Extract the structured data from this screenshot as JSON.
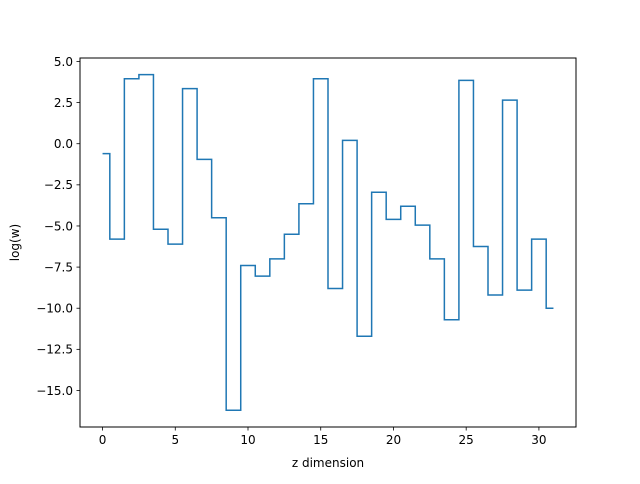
{
  "chart_data": {
    "type": "line",
    "drawstyle": "steps-mid",
    "title": "",
    "xlabel": "z dimension",
    "ylabel": "log(w)",
    "xlim": [
      -1.55,
      32.55
    ],
    "ylim": [
      -17.22,
      5.21
    ],
    "grid": false,
    "x_ticks": [
      0,
      5,
      10,
      15,
      20,
      25,
      30
    ],
    "x_tick_labels": [
      "0",
      "5",
      "10",
      "15",
      "20",
      "25",
      "30"
    ],
    "y_ticks": [
      5.0,
      2.5,
      0.0,
      -2.5,
      -5.0,
      -7.5,
      -10.0,
      -12.5,
      -15.0
    ],
    "y_tick_labels": [
      "5.0",
      "2.5",
      "0.0",
      "−2.5",
      "−5.0",
      "−7.5",
      "−10.0",
      "−12.5",
      "−15.0"
    ],
    "series": [
      {
        "color": "#1f77b4",
        "x": [
          0,
          1,
          2,
          3,
          4,
          5,
          6,
          7,
          8,
          9,
          10,
          11,
          12,
          13,
          14,
          15,
          16,
          17,
          18,
          19,
          20,
          21,
          22,
          23,
          24,
          25,
          26,
          27,
          28,
          29,
          30,
          31
        ],
        "values": [
          -0.6,
          -5.8,
          3.95,
          4.2,
          -5.2,
          -6.1,
          3.35,
          -0.95,
          -4.5,
          -16.2,
          -7.4,
          -8.05,
          -7.0,
          -5.5,
          -3.65,
          3.95,
          -8.8,
          0.2,
          -11.7,
          -2.95,
          -4.6,
          -3.8,
          -4.95,
          -7.0,
          -10.7,
          3.85,
          -6.25,
          -9.2,
          2.65,
          -8.9,
          -5.8,
          -10.0
        ]
      }
    ]
  }
}
